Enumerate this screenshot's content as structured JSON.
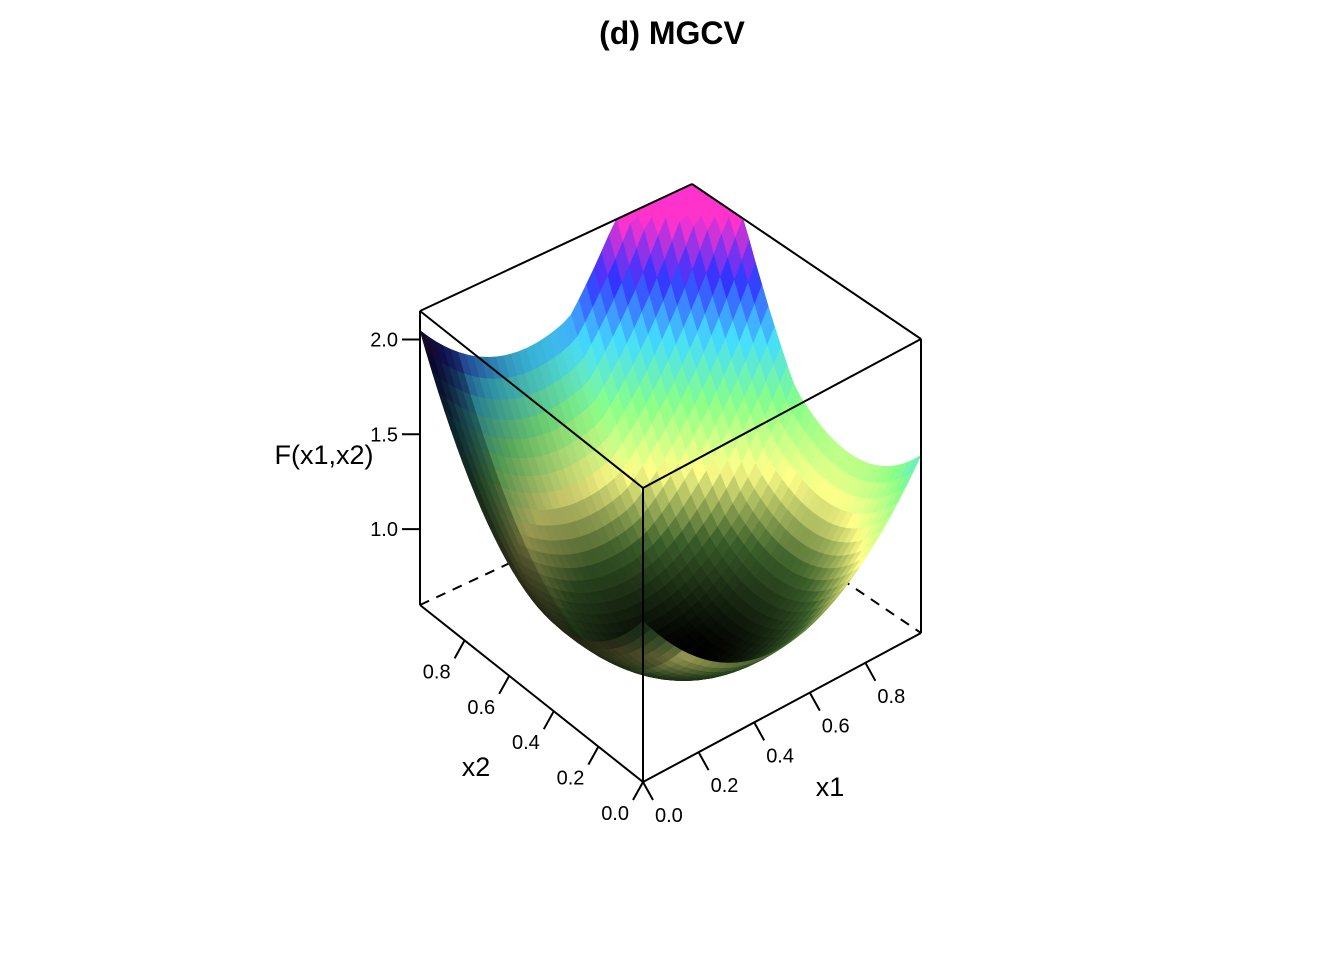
{
  "chart_data": {
    "type": "surface3d",
    "title": "(d) MGCV",
    "xlabel": "x1",
    "ylabel": "x2",
    "zlabel": "F(x1,x2)",
    "x_ticks": [
      "0.0",
      "0.2",
      "0.4",
      "0.6",
      "0.8"
    ],
    "y_ticks": [
      "0.0",
      "0.2",
      "0.4",
      "0.6",
      "0.8"
    ],
    "z_ticks": [
      "1.0",
      "1.5",
      "2.0"
    ],
    "xlim": [
      0,
      1
    ],
    "ylim": [
      0,
      1
    ],
    "zlim": [
      0.6,
      2.15
    ],
    "corner_values": {
      "x1_0_x2_0": 0.85,
      "x1_1_x2_0": 2.0,
      "x1_0_x2_1": 2.0,
      "x1_1_x2_1": 2.15
    },
    "minimum": {
      "x1": 0.45,
      "x2": 0.35,
      "value": 0.6
    },
    "colormap": [
      "#000000",
      "#3a5f2a",
      "#ffff88",
      "#88ff88",
      "#44ddff",
      "#3333ff",
      "#ff33cc"
    ]
  }
}
